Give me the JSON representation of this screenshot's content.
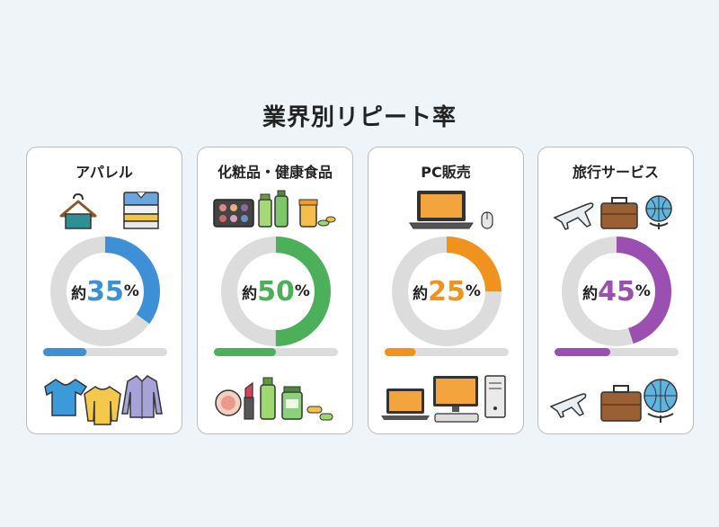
{
  "title": "業界別リピート率",
  "cards": [
    {
      "name": "アパレル",
      "prefix": "約",
      "value": 35,
      "value_text": "35",
      "suffix": "%",
      "color": "#3d8fd6"
    },
    {
      "name": "化粧品・健康食品",
      "prefix": "約",
      "value": 50,
      "value_text": "50",
      "suffix": "%",
      "color": "#4caf5a"
    },
    {
      "name": "PC販売",
      "prefix": "約",
      "value": 25,
      "value_text": "25",
      "suffix": "%",
      "color": "#f0921e"
    },
    {
      "name": "旅行サービス",
      "prefix": "約",
      "value": 45,
      "value_text": "45",
      "suffix": "%",
      "color": "#9b4fb0"
    }
  ],
  "icons": {
    "card0_top": [
      "hanger-icon",
      "folded-shirt-icon"
    ],
    "card0_bottom": [
      "tshirt-icon",
      "sweater-icon",
      "dress-shirt-icon"
    ],
    "card1_top": [
      "eyeshadow-palette-icon",
      "cosmetic-bottles-icon",
      "supplement-jar-icon"
    ],
    "card1_bottom": [
      "compact-mirror-icon",
      "lipstick-icon",
      "lotion-bottle-icon",
      "supplement-bottle-icon",
      "pill-icon"
    ],
    "card2_top": [
      "laptop-icon",
      "mouse-icon"
    ],
    "card2_bottom": [
      "laptop-icon",
      "desktop-monitor-icon",
      "keyboard-icon",
      "pc-tower-icon"
    ],
    "card3_top": [
      "airplane-icon",
      "suitcase-icon",
      "globe-icon"
    ],
    "card3_bottom": [
      "airplane-icon",
      "suitcase-icon",
      "globe-icon"
    ]
  },
  "track_color": "#dcdcdc"
}
